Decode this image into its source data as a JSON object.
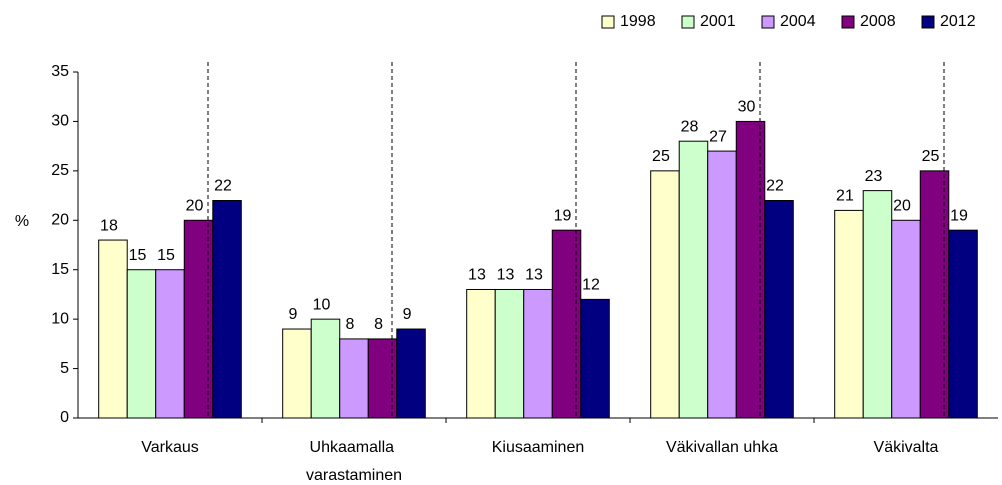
{
  "chart_data": {
    "type": "bar",
    "y_label": "%",
    "categories": [
      "Varkaus",
      "Uhkaamalla varastaminen",
      "Kiusaaminen",
      "Väkivallan uhka",
      "Väkivalta"
    ],
    "series": [
      {
        "name": "1998",
        "color": "#ffffcc",
        "values": [
          18,
          9,
          13,
          25,
          21
        ]
      },
      {
        "name": "2001",
        "color": "#ccffcc",
        "values": [
          15,
          10,
          13,
          28,
          23
        ]
      },
      {
        "name": "2004",
        "color": "#cc99ff",
        "values": [
          15,
          8,
          13,
          27,
          20
        ]
      },
      {
        "name": "2008",
        "color": "#800080",
        "values": [
          20,
          8,
          19,
          30,
          25
        ]
      },
      {
        "name": "2012",
        "color": "#000080",
        "values": [
          22,
          9,
          12,
          22,
          19
        ]
      }
    ],
    "ylim": [
      0,
      35
    ],
    "yticks": [
      0,
      5,
      10,
      15,
      20,
      25,
      30,
      35
    ],
    "legend": "top-right"
  }
}
